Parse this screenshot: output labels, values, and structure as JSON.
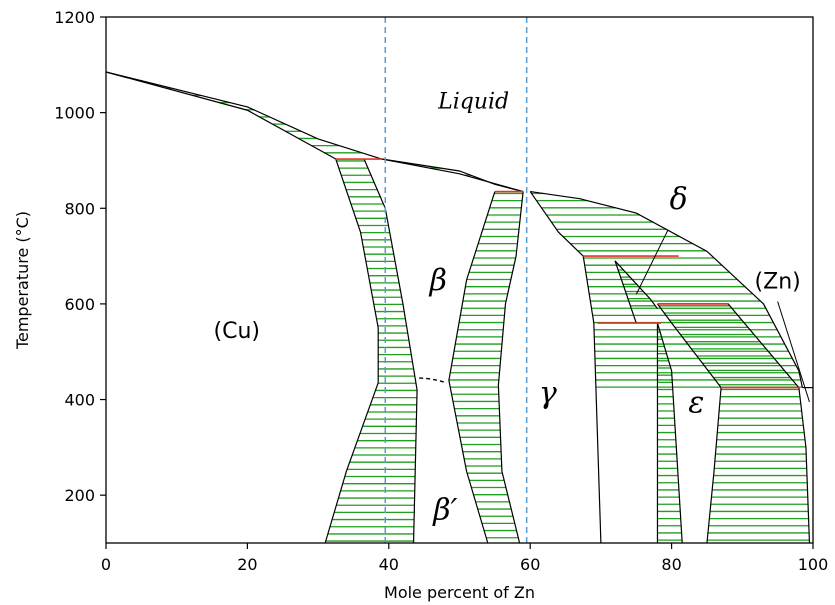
{
  "chart_data": {
    "type": "phase-diagram",
    "xlabel": "Mole percent of Zn",
    "ylabel": "Temperature (°C)",
    "xlim": [
      0,
      100
    ],
    "ylim": [
      100,
      1200
    ],
    "xticks": [
      0,
      20,
      40,
      60,
      80,
      100
    ],
    "yticks": [
      200,
      400,
      600,
      800,
      1000,
      1200
    ],
    "grid": false,
    "colors": {
      "tie_lines": "#1f9e1f",
      "peritectic_lines": "#e8302a",
      "reference_lines": "#5a9bd5",
      "boundaries": "#000000"
    },
    "reference_lines_x": [
      39.5,
      59.5
    ],
    "phase_labels": [
      {
        "text": "Liquid",
        "x": 52,
        "y": 1025,
        "italic": true
      },
      {
        "text": "β",
        "x": 47,
        "y": 650,
        "italic": true
      },
      {
        "text": "β′",
        "x": 48,
        "y": 170,
        "italic": true
      },
      {
        "text": "γ",
        "x": 62.5,
        "y": 415,
        "italic": true
      },
      {
        "text": "δ",
        "x": 81,
        "y": 820,
        "italic": true
      },
      {
        "text": "ε",
        "x": 83.5,
        "y": 395,
        "italic": true
      },
      {
        "text": "(Cu)",
        "x": 18.5,
        "y": 545,
        "italic": false
      },
      {
        "text": "(Zn)",
        "x": 95,
        "y": 648,
        "italic": false
      }
    ],
    "peritectic_temperatures": [
      {
        "x1": 32.5,
        "x2": 39,
        "y": 903
      },
      {
        "x1": 55,
        "x2": 59,
        "y": 835
      },
      {
        "x1": 67.5,
        "x2": 81,
        "y": 700
      },
      {
        "x1": 69.5,
        "x2": 78.5,
        "y": 560
      },
      {
        "x1": 78,
        "x2": 88,
        "y": 600
      },
      {
        "x1": 87,
        "x2": 98,
        "y": 425
      }
    ],
    "two_phase_regions": [
      {
        "name": "Cu+L",
        "left": [
          [
            0,
            1085
          ],
          [
            20,
            1005
          ],
          [
            32.5,
            903
          ]
        ],
        "right": [
          [
            0,
            1085
          ],
          [
            20,
            1012
          ],
          [
            30,
            945
          ],
          [
            39,
            903
          ]
        ]
      },
      {
        "name": "L+beta",
        "left": [
          [
            39,
            903
          ],
          [
            50,
            872
          ],
          [
            59,
            835
          ]
        ],
        "right": [
          [
            39,
            903
          ],
          [
            50,
            878
          ],
          [
            55,
            850
          ],
          [
            59,
            835
          ]
        ]
      },
      {
        "name": "Cu+beta",
        "left": [
          [
            32.5,
            903
          ],
          [
            36,
            750
          ],
          [
            38.5,
            550
          ],
          [
            38.5,
            435
          ],
          [
            34,
            250
          ],
          [
            31,
            100
          ]
        ],
        "right": [
          [
            36.5,
            903
          ],
          [
            39.5,
            800
          ],
          [
            42,
            600
          ],
          [
            44,
            420
          ],
          [
            43.5,
            100
          ]
        ]
      },
      {
        "name": "beta+gamma",
        "left": [
          [
            55,
            835
          ],
          [
            51,
            650
          ],
          [
            48.5,
            440
          ],
          [
            51,
            250
          ],
          [
            54,
            100
          ]
        ],
        "right": [
          [
            59,
            835
          ],
          [
            58,
            700
          ],
          [
            56.5,
            600
          ],
          [
            55.5,
            430
          ],
          [
            56,
            250
          ],
          [
            58.5,
            100
          ]
        ]
      },
      {
        "name": "gamma+L",
        "left": [
          [
            60,
            835
          ],
          [
            64,
            750
          ],
          [
            67.5,
            700
          ],
          [
            69,
            560
          ],
          [
            70,
            100
          ]
        ],
        "right": [
          [
            60,
            835
          ],
          [
            67,
            820
          ],
          [
            75,
            790
          ],
          [
            85,
            710
          ],
          [
            93,
            600
          ],
          [
            98,
            460
          ],
          [
            98.5,
            425
          ]
        ]
      },
      {
        "name": "gamma+delta",
        "left": [
          [
            72,
            690
          ],
          [
            75,
            560
          ]
        ],
        "right": [
          [
            72,
            690
          ],
          [
            77,
            610
          ],
          [
            78,
            590
          ]
        ]
      },
      {
        "name": "gamma+epsilon",
        "left": [
          [
            78,
            560
          ],
          [
            78,
            100
          ]
        ],
        "right": [
          [
            78,
            560
          ],
          [
            80,
            460
          ],
          [
            81.5,
            100
          ]
        ]
      },
      {
        "name": "delta+epsilon",
        "left": [
          [
            78,
            600
          ],
          [
            80,
            560
          ],
          [
            87,
            425
          ]
        ],
        "right": [
          [
            78,
            600
          ],
          [
            88,
            600
          ],
          [
            98,
            425
          ]
        ]
      },
      {
        "name": "epsilon+Zn",
        "left": [
          [
            87,
            425
          ],
          [
            86,
            250
          ],
          [
            85,
            100
          ]
        ],
        "right": [
          [
            98,
            425
          ],
          [
            99,
            300
          ],
          [
            99.5,
            100
          ]
        ]
      }
    ]
  }
}
